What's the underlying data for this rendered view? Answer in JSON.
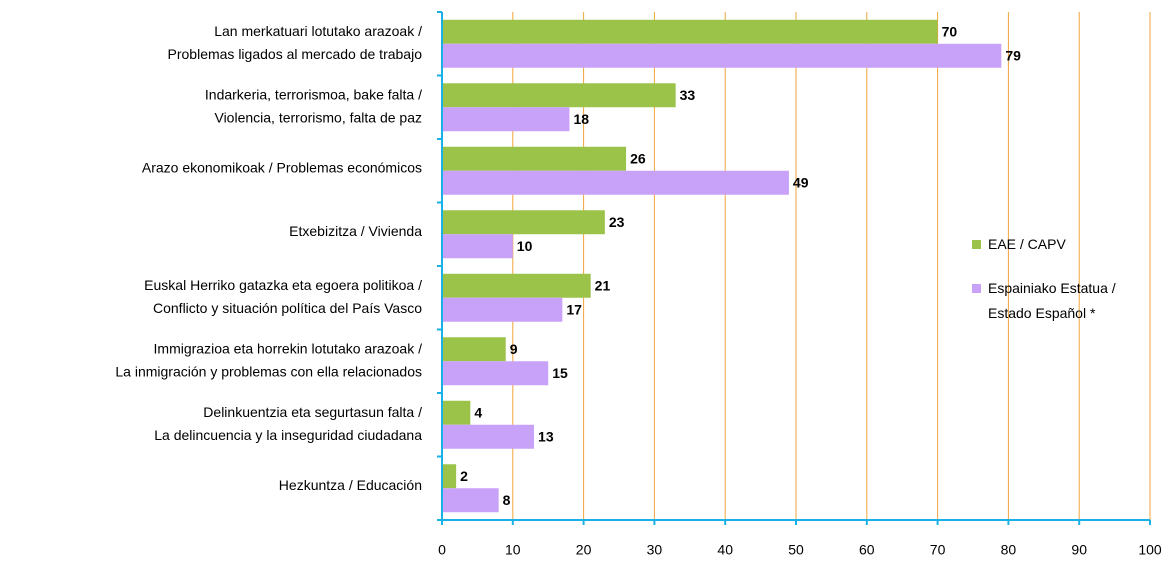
{
  "chart_data": {
    "type": "bar",
    "orientation": "horizontal",
    "categories": [
      [
        "Lan merkatuari lotutako arazoak /",
        "Problemas ligados al mercado de trabajo"
      ],
      [
        "Indarkeria, terrorismoa, bake falta /",
        "Violencia, terrorismo, falta de paz"
      ],
      [
        "Arazo ekonomikoak / Problemas económicos"
      ],
      [
        "Etxebizitza / Vivienda"
      ],
      [
        "Euskal Herriko gatazka eta egoera politikoa /",
        "Conflicto y situación política del País Vasco"
      ],
      [
        "Immigrazioa eta horrekin lotutako arazoak /",
        "La inmigración y problemas con ella relacionados"
      ],
      [
        "Delinkuentzia eta segurtasun falta /",
        "La delincuencia y la inseguridad ciudadana"
      ],
      [
        "Hezkuntza / Educación"
      ]
    ],
    "series": [
      {
        "name": "EAE / CAPV",
        "color": "#9bc34a",
        "values": [
          70,
          33,
          26,
          23,
          21,
          9,
          4,
          2
        ]
      },
      {
        "name": "Espainiako Estatua / Estado Español *",
        "color": "#c8a2f8",
        "values": [
          79,
          18,
          49,
          10,
          17,
          15,
          13,
          8
        ]
      }
    ],
    "xlim": [
      0,
      100
    ],
    "xticks": [
      0,
      10,
      20,
      30,
      40,
      50,
      60,
      70,
      80,
      90,
      100
    ],
    "grid": true,
    "legend": "right"
  }
}
